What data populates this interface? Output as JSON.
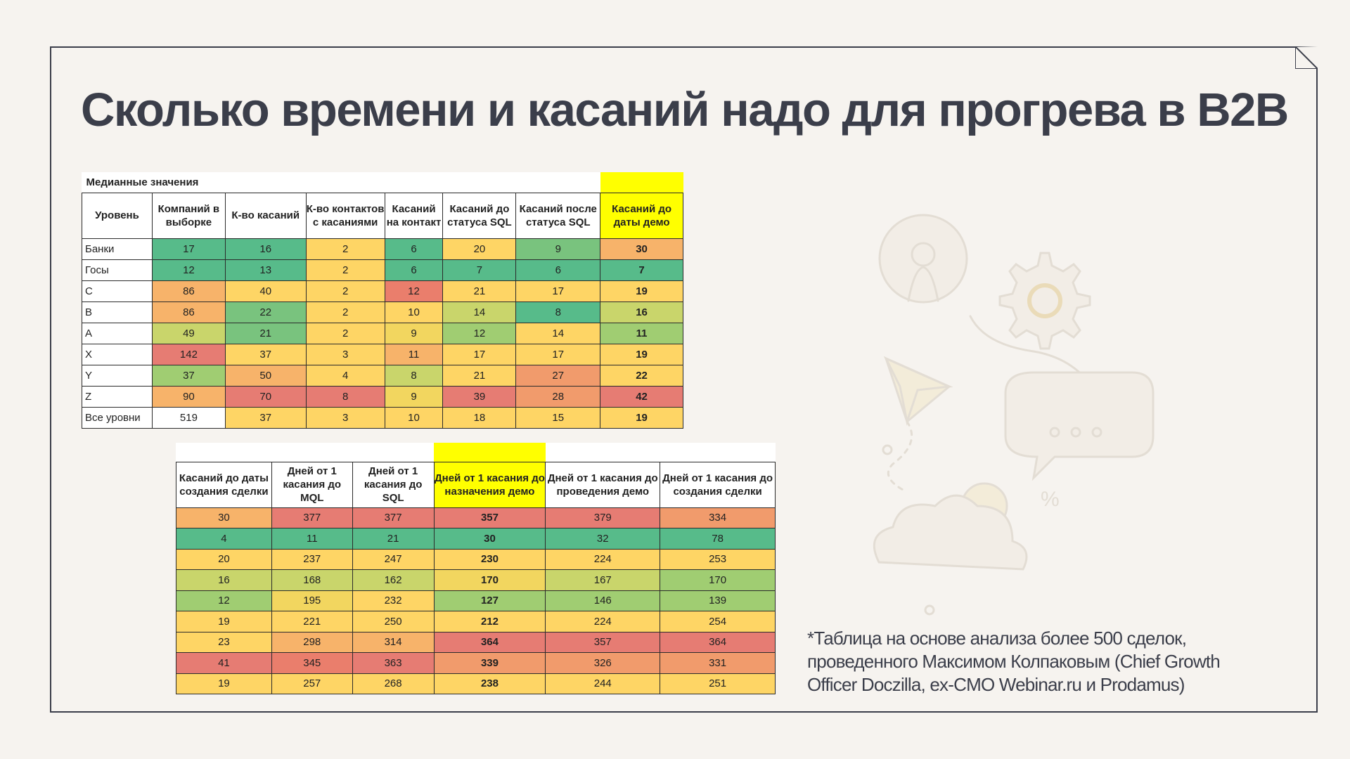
{
  "title": "Сколько времени и касаний надо для прогрева в B2B",
  "table1": {
    "caption": "Медианные значения",
    "headers": [
      "Уровень",
      "Компаний в выборке",
      "К-во касаний",
      "К-во контактов с касаниями",
      "Касаний на контакт",
      "Касаний до статуса SQL",
      "Касаний после статуса SQL",
      "Касаний до даты демо"
    ],
    "rows": [
      [
        "Банки",
        "17",
        "16",
        "2",
        "6",
        "20",
        "9",
        "30"
      ],
      [
        "Госы",
        "12",
        "13",
        "2",
        "6",
        "7",
        "6",
        "7"
      ],
      [
        "C",
        "86",
        "40",
        "2",
        "12",
        "21",
        "17",
        "19"
      ],
      [
        "B",
        "86",
        "22",
        "2",
        "10",
        "14",
        "8",
        "16"
      ],
      [
        "A",
        "49",
        "21",
        "2",
        "9",
        "12",
        "14",
        "11"
      ],
      [
        "X",
        "142",
        "37",
        "3",
        "11",
        "17",
        "17",
        "19"
      ],
      [
        "Y",
        "37",
        "50",
        "4",
        "8",
        "21",
        "27",
        "22"
      ],
      [
        "Z",
        "90",
        "70",
        "8",
        "9",
        "39",
        "28",
        "42"
      ],
      [
        "Все уровни",
        "519",
        "37",
        "3",
        "10",
        "18",
        "15",
        "19"
      ]
    ]
  },
  "table2": {
    "headers": [
      "Касаний до даты создания сделки",
      "Дней от 1 касания до MQL",
      "Дней от 1 касания до SQL",
      "Дней от 1 касания до назначения демо",
      "Дней от 1 касания до проведения демо",
      "Дней от 1 касания до создания сделки"
    ],
    "rows": [
      [
        "30",
        "377",
        "377",
        "357",
        "379",
        "334"
      ],
      [
        "4",
        "11",
        "21",
        "30",
        "32",
        "78"
      ],
      [
        "20",
        "237",
        "247",
        "230",
        "224",
        "253"
      ],
      [
        "16",
        "168",
        "162",
        "170",
        "167",
        "170"
      ],
      [
        "12",
        "195",
        "232",
        "127",
        "146",
        "139"
      ],
      [
        "19",
        "221",
        "250",
        "212",
        "224",
        "254"
      ],
      [
        "23",
        "298",
        "314",
        "364",
        "357",
        "364"
      ],
      [
        "41",
        "345",
        "363",
        "339",
        "326",
        "331"
      ],
      [
        "19",
        "257",
        "268",
        "238",
        "244",
        "251"
      ]
    ]
  },
  "footnote": "*Таблица на основе анализа более 500 сделок, проведенного Максимом Колпаковым (Chief Growth Officer Doczilla, ex-CMO Webinar.ru и Prodamus)",
  "colors": {
    "highlight": "#ffff00",
    "text": "#3b3e4a",
    "caption_red": "#e01c1c"
  }
}
